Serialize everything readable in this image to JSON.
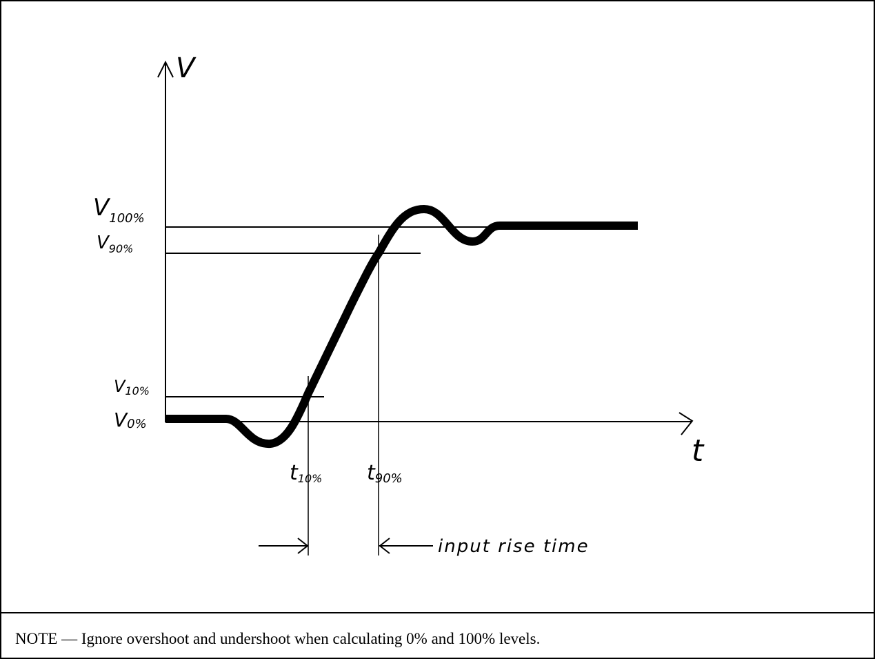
{
  "diagram": {
    "axis_labels": {
      "y": "V",
      "x": "t"
    },
    "levels": [
      {
        "main": "V",
        "sub": "100%"
      },
      {
        "main": "V",
        "sub": "90%"
      },
      {
        "main": "V",
        "sub": "10%"
      },
      {
        "main": "V",
        "sub": "0%"
      }
    ],
    "times": [
      {
        "main": "t",
        "sub": "10%"
      },
      {
        "main": "t",
        "sub": "90%"
      }
    ],
    "annotation": "input rise time"
  },
  "note": "NOTE — Ignore overshoot and undershoot when calculating 0% and 100% levels."
}
